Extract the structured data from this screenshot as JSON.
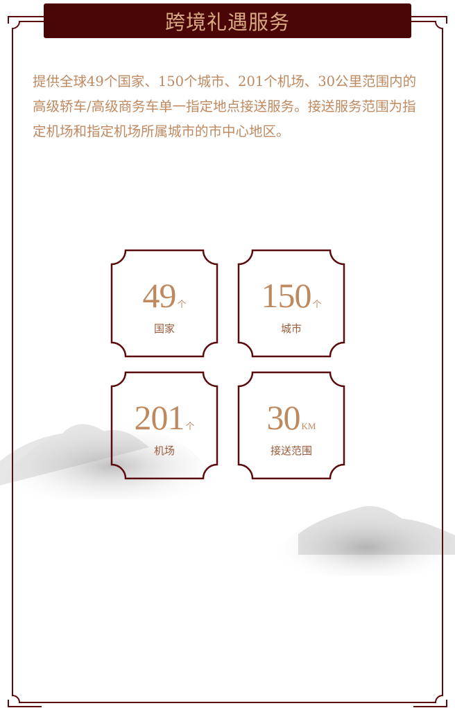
{
  "title": "跨境礼遇服务",
  "intro": "提供全球49个国家、150个城市、201个机场、30公里范围内的高级轿车/高级商务车单一指定地点接送服务。接送服务范围为指定机场和指定机场所属城市的市中心地区。",
  "stats": [
    {
      "value": "49",
      "unit": "个",
      "label": "国家"
    },
    {
      "value": "150",
      "unit": "个",
      "label": "城市"
    },
    {
      "value": "201",
      "unit": "个",
      "label": "机场"
    },
    {
      "value": "30",
      "unit": "KM",
      "label": "接送范围"
    }
  ],
  "colors": {
    "banner": "#4a0606",
    "border": "#5a0c0c",
    "text": "#bf8960"
  }
}
